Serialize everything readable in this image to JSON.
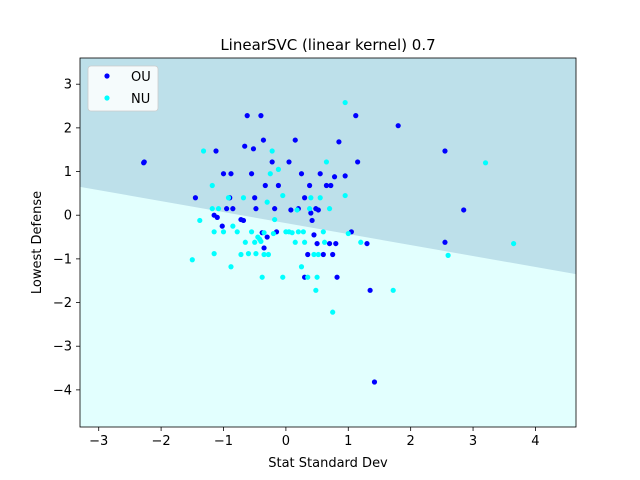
{
  "chart_data": {
    "type": "scatter",
    "title": "LinearSVC (linear kernel) 0.7",
    "xlabel": "Stat Standard Dev",
    "ylabel": "Lowest Defense",
    "xlim": [
      -3.3,
      4.65
    ],
    "ylim": [
      -4.85,
      3.6
    ],
    "xticks": [
      -3,
      -2,
      -1,
      0,
      1,
      2,
      3,
      4
    ],
    "yticks": [
      -4,
      -3,
      -2,
      -1,
      0,
      1,
      2,
      3
    ],
    "grid": false,
    "legend_position": "top-left",
    "decision_boundary": {
      "x": [
        -3.3,
        4.65
      ],
      "y": [
        0.65,
        -1.35
      ]
    },
    "regions": {
      "upper_color": "#bde0ea",
      "lower_color": "#e2fffe"
    },
    "series": [
      {
        "name": "OU",
        "color": "#0000ff",
        "points": [
          [
            -2.28,
            1.2
          ],
          [
            -2.27,
            1.22
          ],
          [
            -1.45,
            0.4
          ],
          [
            -1.12,
            1.47
          ],
          [
            -1.15,
            0.0
          ],
          [
            -1.1,
            -0.05
          ],
          [
            -1.0,
            0.95
          ],
          [
            -1.02,
            -0.25
          ],
          [
            -0.95,
            0.15
          ],
          [
            -0.88,
            0.95
          ],
          [
            -0.9,
            0.4
          ],
          [
            -0.85,
            0.15
          ],
          [
            -0.72,
            -0.1
          ],
          [
            -0.68,
            -0.12
          ],
          [
            -0.62,
            2.28
          ],
          [
            -0.66,
            1.58
          ],
          [
            -0.52,
            1.52
          ],
          [
            -0.55,
            0.95
          ],
          [
            -0.5,
            0.4
          ],
          [
            -0.48,
            0.15
          ],
          [
            -0.4,
            2.28
          ],
          [
            -0.36,
            1.72
          ],
          [
            -0.33,
            0.68
          ],
          [
            -0.38,
            -0.4
          ],
          [
            -0.3,
            -0.5
          ],
          [
            -0.35,
            -0.75
          ],
          [
            -0.22,
            1.22
          ],
          [
            -0.18,
            0.15
          ],
          [
            -0.15,
            -0.38
          ],
          [
            -0.12,
            0.68
          ],
          [
            0.05,
            1.22
          ],
          [
            0.08,
            0.12
          ],
          [
            0.15,
            1.72
          ],
          [
            0.2,
            0.15
          ],
          [
            0.25,
            0.95
          ],
          [
            0.3,
            0.4
          ],
          [
            0.3,
            -1.42
          ],
          [
            0.35,
            -0.9
          ],
          [
            0.38,
            0.68
          ],
          [
            0.4,
            0.05
          ],
          [
            0.42,
            -0.12
          ],
          [
            0.45,
            -0.45
          ],
          [
            0.48,
            0.15
          ],
          [
            0.5,
            -0.65
          ],
          [
            0.52,
            0.12
          ],
          [
            0.55,
            0.95
          ],
          [
            0.6,
            -0.9
          ],
          [
            0.65,
            0.68
          ],
          [
            0.7,
            -0.65
          ],
          [
            0.72,
            0.68
          ],
          [
            0.75,
            -0.9
          ],
          [
            0.78,
            0.88
          ],
          [
            0.8,
            -0.65
          ],
          [
            0.85,
            1.68
          ],
          [
            0.82,
            -1.42
          ],
          [
            0.95,
            0.9
          ],
          [
            1.05,
            -0.38
          ],
          [
            1.12,
            2.28
          ],
          [
            1.15,
            1.22
          ],
          [
            1.3,
            -0.65
          ],
          [
            1.35,
            -1.72
          ],
          [
            1.42,
            -3.82
          ],
          [
            1.8,
            2.05
          ],
          [
            2.55,
            1.47
          ],
          [
            2.55,
            -0.62
          ],
          [
            2.85,
            0.12
          ]
        ]
      },
      {
        "name": "NU",
        "color": "#00ffff",
        "points": [
          [
            -1.5,
            -1.02
          ],
          [
            -1.38,
            -0.12
          ],
          [
            -1.32,
            1.47
          ],
          [
            -1.18,
            0.68
          ],
          [
            -1.18,
            0.15
          ],
          [
            -1.15,
            -0.38
          ],
          [
            -1.15,
            -0.88
          ],
          [
            -1.08,
            0.15
          ],
          [
            -1.0,
            -0.38
          ],
          [
            -0.92,
            0.4
          ],
          [
            -0.88,
            -1.18
          ],
          [
            -0.85,
            -0.25
          ],
          [
            -0.78,
            -0.38
          ],
          [
            -0.72,
            -0.9
          ],
          [
            -0.68,
            0.4
          ],
          [
            -0.65,
            -0.62
          ],
          [
            -0.6,
            -0.88
          ],
          [
            -0.55,
            -0.38
          ],
          [
            -0.5,
            -0.62
          ],
          [
            -0.48,
            -0.88
          ],
          [
            -0.45,
            -0.5
          ],
          [
            -0.42,
            -0.55
          ],
          [
            -0.4,
            -0.6
          ],
          [
            -0.38,
            -1.42
          ],
          [
            -0.35,
            -0.4
          ],
          [
            -0.35,
            -0.9
          ],
          [
            -0.3,
            0.3
          ],
          [
            -0.28,
            -0.9
          ],
          [
            -0.25,
            0.95
          ],
          [
            -0.22,
            1.47
          ],
          [
            -0.2,
            -0.42
          ],
          [
            -0.18,
            -0.1
          ],
          [
            -0.12,
            1.05
          ],
          [
            -0.05,
            -1.42
          ],
          [
            -0.05,
            0.45
          ],
          [
            0.0,
            -0.38
          ],
          [
            0.05,
            -0.38
          ],
          [
            0.1,
            -0.4
          ],
          [
            0.15,
            -0.62
          ],
          [
            0.18,
            0.12
          ],
          [
            0.2,
            -0.38
          ],
          [
            0.25,
            -1.18
          ],
          [
            0.28,
            -0.38
          ],
          [
            0.3,
            -0.62
          ],
          [
            0.35,
            -1.42
          ],
          [
            0.38,
            0.15
          ],
          [
            0.4,
            0.4
          ],
          [
            0.45,
            -0.9
          ],
          [
            0.48,
            -1.72
          ],
          [
            0.5,
            -1.42
          ],
          [
            0.52,
            -0.9
          ],
          [
            0.55,
            0.4
          ],
          [
            0.6,
            -0.38
          ],
          [
            0.62,
            -0.62
          ],
          [
            0.65,
            1.22
          ],
          [
            0.7,
            0.15
          ],
          [
            0.75,
            -2.22
          ],
          [
            0.95,
            2.58
          ],
          [
            0.95,
            0.45
          ],
          [
            1.0,
            -0.42
          ],
          [
            1.2,
            -0.62
          ],
          [
            1.72,
            -1.72
          ],
          [
            2.6,
            -0.92
          ],
          [
            3.2,
            1.2
          ],
          [
            3.65,
            -0.65
          ]
        ]
      }
    ]
  }
}
